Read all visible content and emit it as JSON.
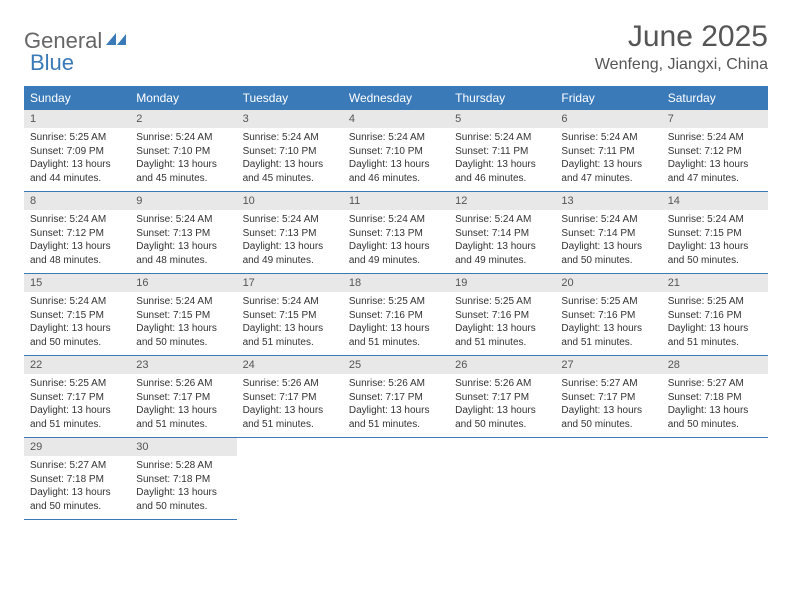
{
  "logo": {
    "text_general": "General",
    "text_blue": "Blue",
    "icon_color": "#3a7ab8"
  },
  "title": "June 2025",
  "location": "Wenfeng, Jiangxi, China",
  "colors": {
    "header_bg": "#3a7ab8",
    "header_text": "#ffffff",
    "daynum_bg": "#e8e8e8",
    "border": "#3a7ab8",
    "text": "#333333"
  },
  "weekdays": [
    "Sunday",
    "Monday",
    "Tuesday",
    "Wednesday",
    "Thursday",
    "Friday",
    "Saturday"
  ],
  "days": [
    {
      "n": "1",
      "sr": "5:25 AM",
      "ss": "7:09 PM",
      "dl": "13 hours and 44 minutes."
    },
    {
      "n": "2",
      "sr": "5:24 AM",
      "ss": "7:10 PM",
      "dl": "13 hours and 45 minutes."
    },
    {
      "n": "3",
      "sr": "5:24 AM",
      "ss": "7:10 PM",
      "dl": "13 hours and 45 minutes."
    },
    {
      "n": "4",
      "sr": "5:24 AM",
      "ss": "7:10 PM",
      "dl": "13 hours and 46 minutes."
    },
    {
      "n": "5",
      "sr": "5:24 AM",
      "ss": "7:11 PM",
      "dl": "13 hours and 46 minutes."
    },
    {
      "n": "6",
      "sr": "5:24 AM",
      "ss": "7:11 PM",
      "dl": "13 hours and 47 minutes."
    },
    {
      "n": "7",
      "sr": "5:24 AM",
      "ss": "7:12 PM",
      "dl": "13 hours and 47 minutes."
    },
    {
      "n": "8",
      "sr": "5:24 AM",
      "ss": "7:12 PM",
      "dl": "13 hours and 48 minutes."
    },
    {
      "n": "9",
      "sr": "5:24 AM",
      "ss": "7:13 PM",
      "dl": "13 hours and 48 minutes."
    },
    {
      "n": "10",
      "sr": "5:24 AM",
      "ss": "7:13 PM",
      "dl": "13 hours and 49 minutes."
    },
    {
      "n": "11",
      "sr": "5:24 AM",
      "ss": "7:13 PM",
      "dl": "13 hours and 49 minutes."
    },
    {
      "n": "12",
      "sr": "5:24 AM",
      "ss": "7:14 PM",
      "dl": "13 hours and 49 minutes."
    },
    {
      "n": "13",
      "sr": "5:24 AM",
      "ss": "7:14 PM",
      "dl": "13 hours and 50 minutes."
    },
    {
      "n": "14",
      "sr": "5:24 AM",
      "ss": "7:15 PM",
      "dl": "13 hours and 50 minutes."
    },
    {
      "n": "15",
      "sr": "5:24 AM",
      "ss": "7:15 PM",
      "dl": "13 hours and 50 minutes."
    },
    {
      "n": "16",
      "sr": "5:24 AM",
      "ss": "7:15 PM",
      "dl": "13 hours and 50 minutes."
    },
    {
      "n": "17",
      "sr": "5:24 AM",
      "ss": "7:15 PM",
      "dl": "13 hours and 51 minutes."
    },
    {
      "n": "18",
      "sr": "5:25 AM",
      "ss": "7:16 PM",
      "dl": "13 hours and 51 minutes."
    },
    {
      "n": "19",
      "sr": "5:25 AM",
      "ss": "7:16 PM",
      "dl": "13 hours and 51 minutes."
    },
    {
      "n": "20",
      "sr": "5:25 AM",
      "ss": "7:16 PM",
      "dl": "13 hours and 51 minutes."
    },
    {
      "n": "21",
      "sr": "5:25 AM",
      "ss": "7:16 PM",
      "dl": "13 hours and 51 minutes."
    },
    {
      "n": "22",
      "sr": "5:25 AM",
      "ss": "7:17 PM",
      "dl": "13 hours and 51 minutes."
    },
    {
      "n": "23",
      "sr": "5:26 AM",
      "ss": "7:17 PM",
      "dl": "13 hours and 51 minutes."
    },
    {
      "n": "24",
      "sr": "5:26 AM",
      "ss": "7:17 PM",
      "dl": "13 hours and 51 minutes."
    },
    {
      "n": "25",
      "sr": "5:26 AM",
      "ss": "7:17 PM",
      "dl": "13 hours and 51 minutes."
    },
    {
      "n": "26",
      "sr": "5:26 AM",
      "ss": "7:17 PM",
      "dl": "13 hours and 50 minutes."
    },
    {
      "n": "27",
      "sr": "5:27 AM",
      "ss": "7:17 PM",
      "dl": "13 hours and 50 minutes."
    },
    {
      "n": "28",
      "sr": "5:27 AM",
      "ss": "7:18 PM",
      "dl": "13 hours and 50 minutes."
    },
    {
      "n": "29",
      "sr": "5:27 AM",
      "ss": "7:18 PM",
      "dl": "13 hours and 50 minutes."
    },
    {
      "n": "30",
      "sr": "5:28 AM",
      "ss": "7:18 PM",
      "dl": "13 hours and 50 minutes."
    }
  ],
  "labels": {
    "sunrise": "Sunrise:",
    "sunset": "Sunset:",
    "daylight": "Daylight:"
  }
}
